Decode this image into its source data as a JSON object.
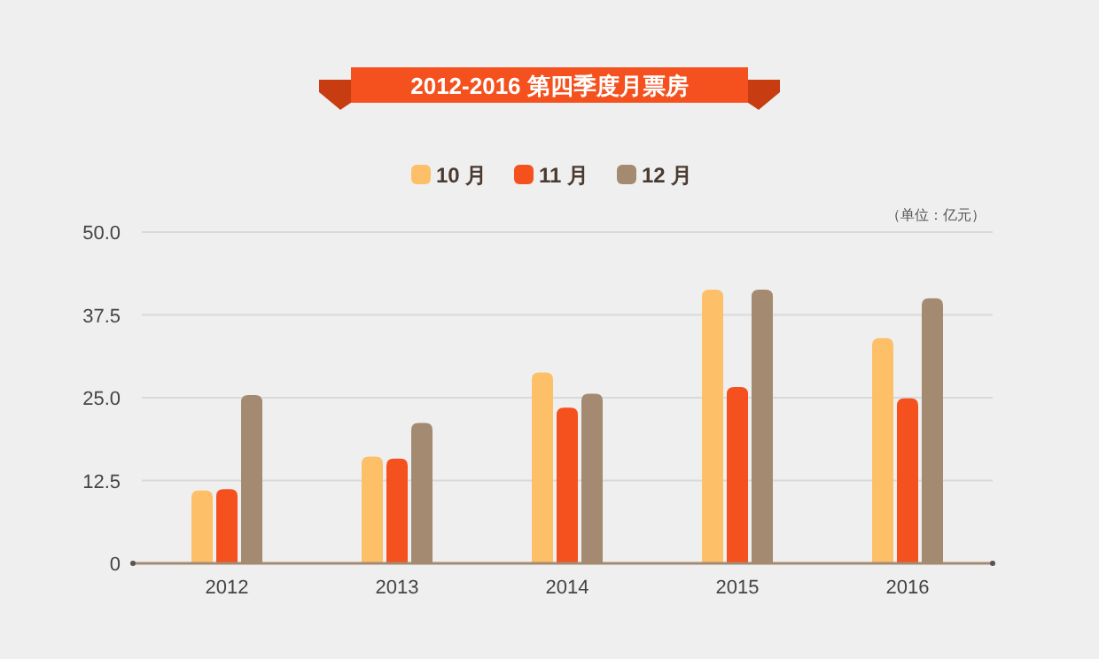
{
  "chart_data": {
    "type": "bar",
    "title": "2012-2016 第四季度月票房",
    "categories": [
      "2012",
      "2013",
      "2014",
      "2015",
      "2016"
    ],
    "series": [
      {
        "name": "10 月",
        "color": "#fdc068",
        "values": [
          11.0,
          16.1,
          28.8,
          41.3,
          34.0
        ]
      },
      {
        "name": "11 月",
        "color": "#f4511e",
        "values": [
          11.2,
          15.8,
          23.5,
          26.6,
          24.9
        ]
      },
      {
        "name": "12 月",
        "color": "#a58a72",
        "values": [
          25.4,
          21.2,
          25.6,
          41.3,
          40.0
        ]
      }
    ],
    "ylim": [
      0,
      50
    ],
    "yticks": [
      {
        "value": 0,
        "label": "0"
      },
      {
        "value": 12.5,
        "label": "12.5"
      },
      {
        "value": 25,
        "label": "25.0"
      },
      {
        "value": 37.5,
        "label": "37.5"
      },
      {
        "value": 50,
        "label": "50.0"
      }
    ],
    "annotations": [
      "（单位：亿元）"
    ],
    "grid": "y",
    "legend": "top"
  }
}
